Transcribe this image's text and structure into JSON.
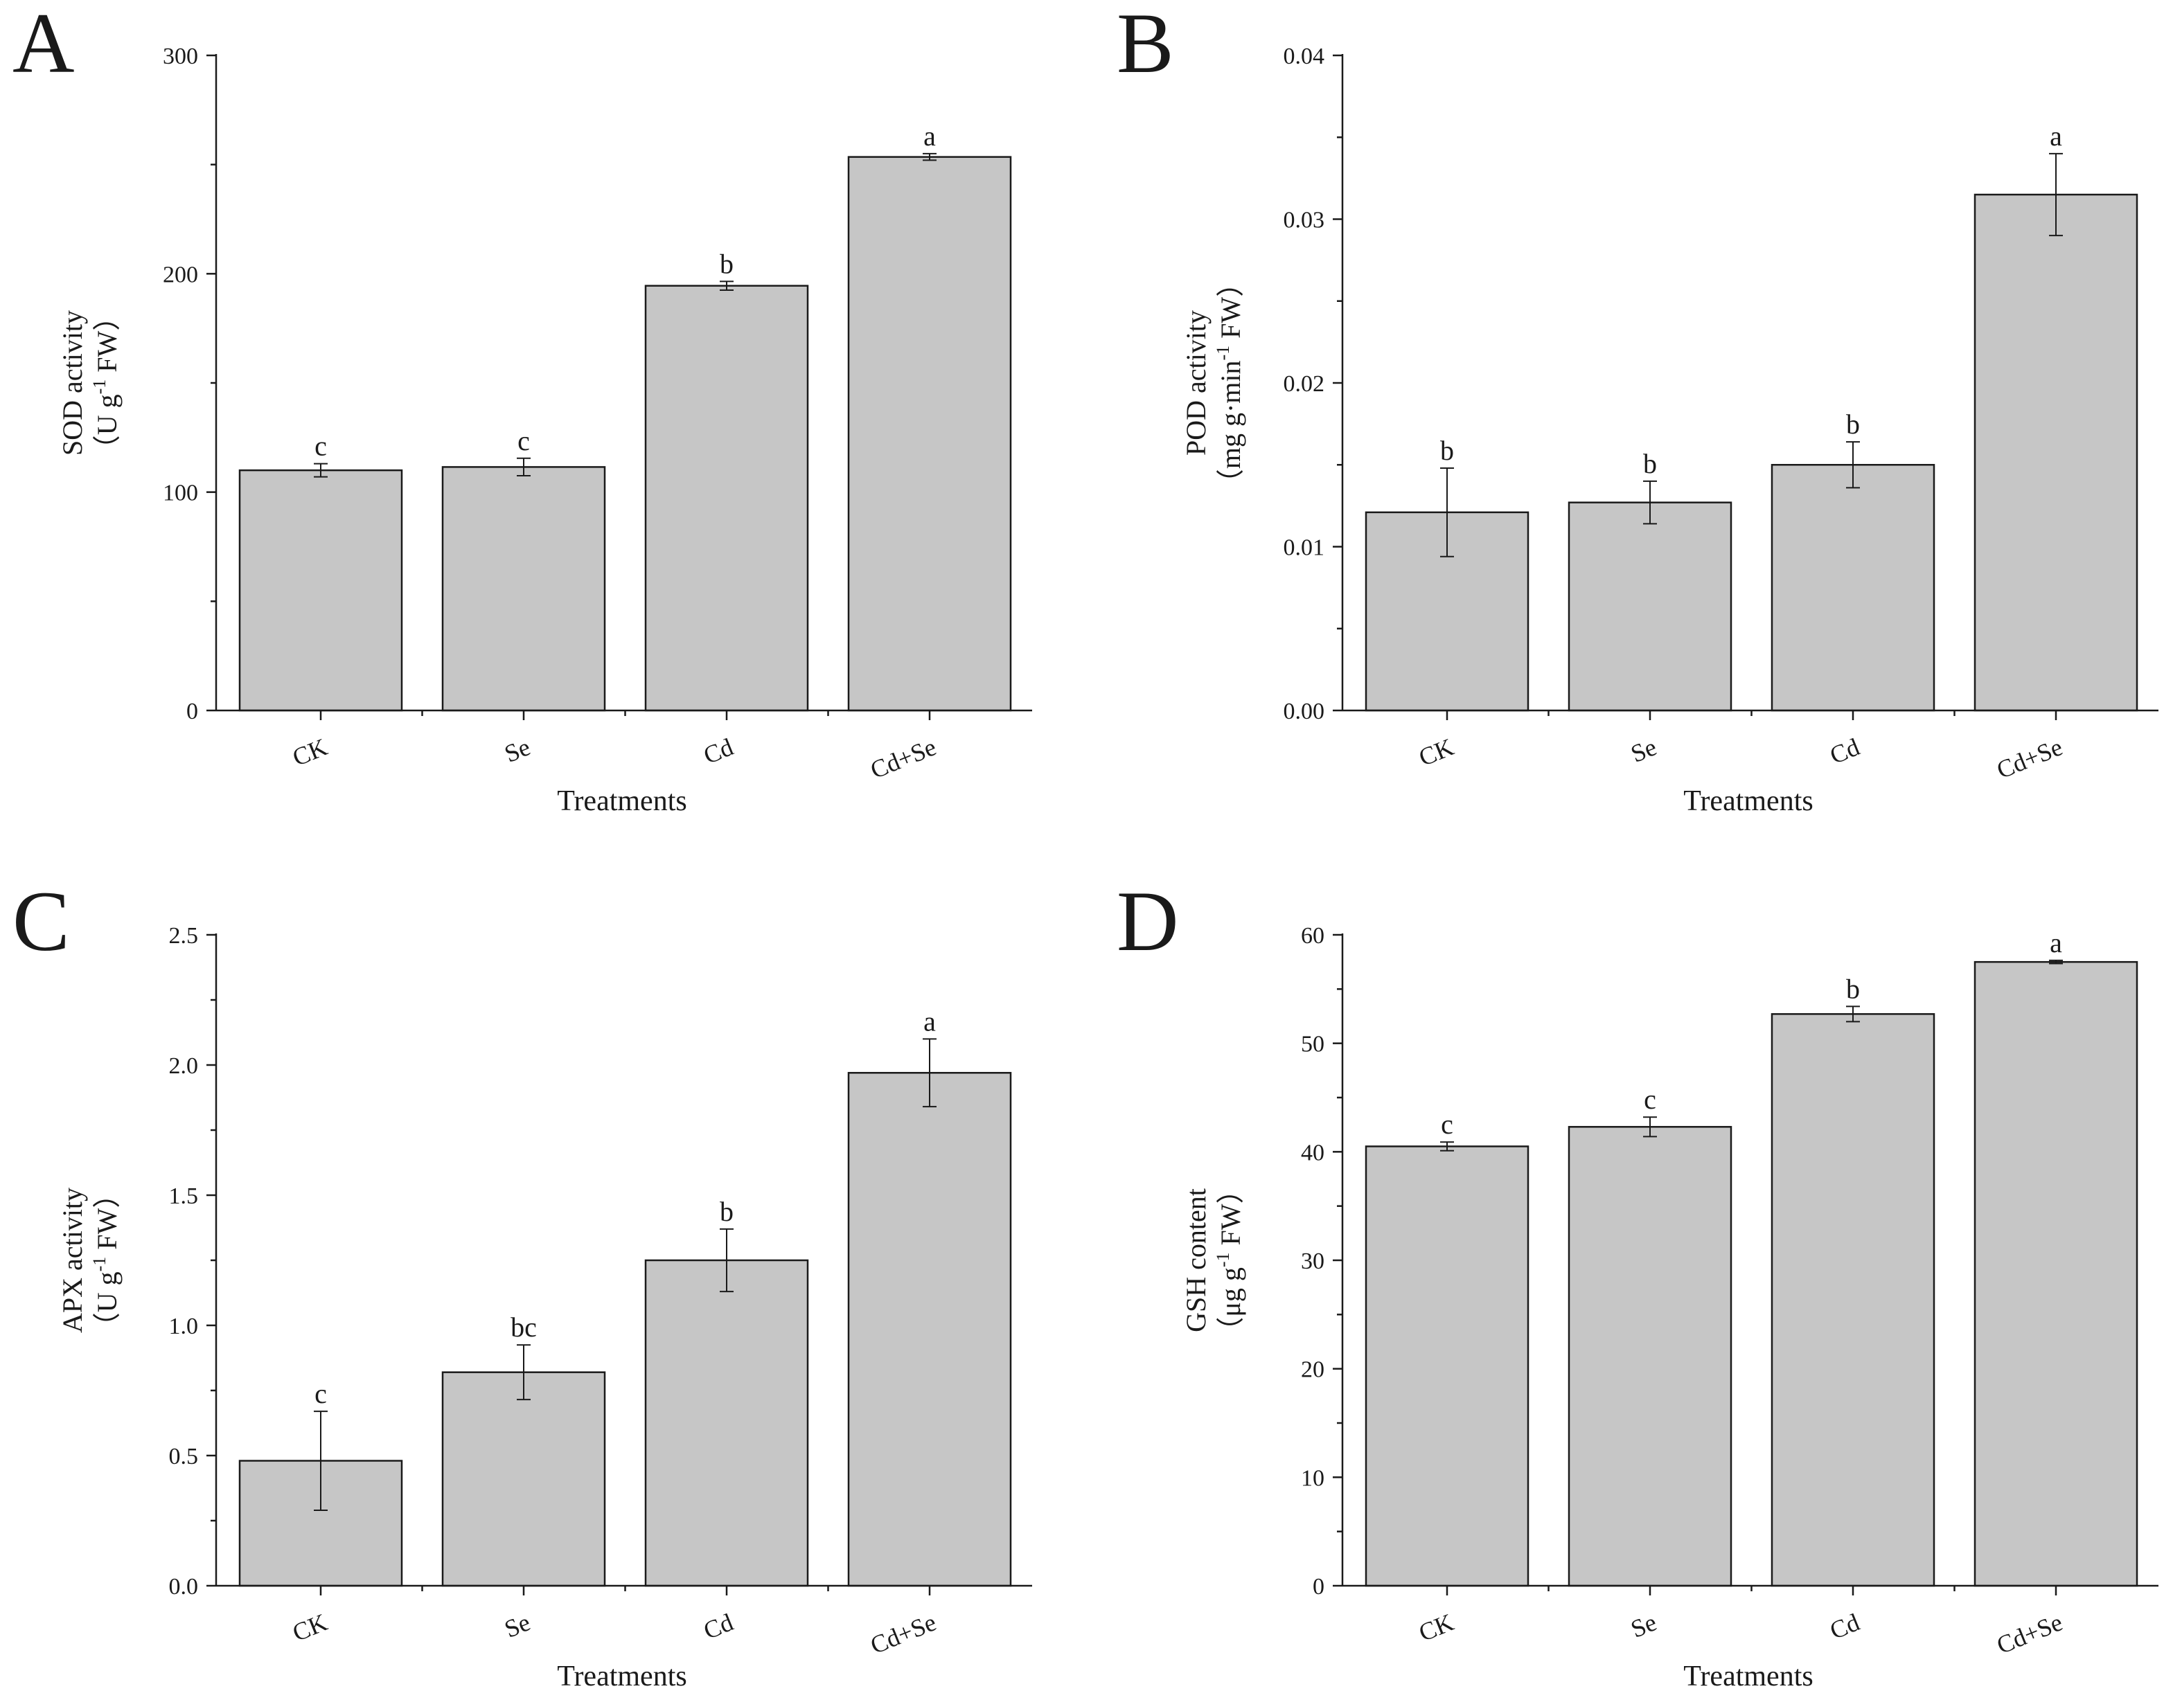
{
  "chart_data": [
    {
      "panel": "A",
      "type": "bar",
      "xlabel": "Treatments",
      "ylabel": [
        "SOD activity",
        "（U g",
        "-1",
        " FW）"
      ],
      "categories": [
        "CK",
        "Se",
        "Cd",
        "Cd+Se"
      ],
      "values": [
        110,
        111.5,
        194.5,
        253.5
      ],
      "errors": [
        3,
        4,
        2,
        1.5
      ],
      "significance": [
        "c",
        "c",
        "b",
        "a"
      ],
      "ylim": [
        0,
        300
      ],
      "yticks": [
        0,
        100,
        200,
        300
      ],
      "ytick_labels": [
        "0",
        "100",
        "200",
        "300"
      ]
    },
    {
      "panel": "B",
      "type": "bar",
      "xlabel": "Treatments",
      "ylabel": [
        "POD activity",
        "（mg g·min",
        "-1",
        " FW）"
      ],
      "categories": [
        "CK",
        "Se",
        "Cd",
        "Cd+Se"
      ],
      "values": [
        0.0121,
        0.0127,
        0.015,
        0.0315
      ],
      "errors": [
        0.0027,
        0.0013,
        0.0014,
        0.0025
      ],
      "significance": [
        "b",
        "b",
        "b",
        "a"
      ],
      "ylim": [
        0,
        0.04
      ],
      "yticks": [
        0,
        0.01,
        0.02,
        0.03,
        0.04
      ],
      "ytick_labels": [
        "0.00",
        "0.01",
        "0.02",
        "0.03",
        "0.04"
      ]
    },
    {
      "panel": "C",
      "type": "bar",
      "xlabel": "Treatments",
      "ylabel": [
        "APX activity",
        "（U g",
        "-1",
        " FW）"
      ],
      "categories": [
        "CK",
        "Se",
        "Cd",
        "Cd+Se"
      ],
      "values": [
        0.48,
        0.82,
        1.25,
        1.97
      ],
      "errors": [
        0.19,
        0.105,
        0.12,
        0.13
      ],
      "significance": [
        "c",
        "bc",
        "b",
        "a"
      ],
      "ylim": [
        0,
        2.5
      ],
      "yticks": [
        0,
        0.5,
        1.0,
        1.5,
        2.0,
        2.5
      ],
      "ytick_labels": [
        "0.0",
        "0.5",
        "1.0",
        "1.5",
        "2.0",
        "2.5"
      ]
    },
    {
      "panel": "D",
      "type": "bar",
      "xlabel": "Treatments",
      "ylabel": [
        "GSH content",
        "（μg g",
        "-1",
        " FW）"
      ],
      "categories": [
        "CK",
        "Se",
        "Cd",
        "Cd+Se"
      ],
      "values": [
        40.5,
        42.3,
        52.7,
        57.5
      ],
      "errors": [
        0.4,
        0.9,
        0.7,
        0.15
      ],
      "significance": [
        "c",
        "c",
        "b",
        "a"
      ],
      "ylim": [
        0,
        60
      ],
      "yticks": [
        0,
        10,
        20,
        30,
        40,
        50,
        60
      ],
      "ytick_labels": [
        "0",
        "10",
        "20",
        "30",
        "40",
        "50",
        "60"
      ]
    }
  ],
  "colors": {
    "bar_fill": "#c6c6c6",
    "ink": "#1a1a1a"
  }
}
